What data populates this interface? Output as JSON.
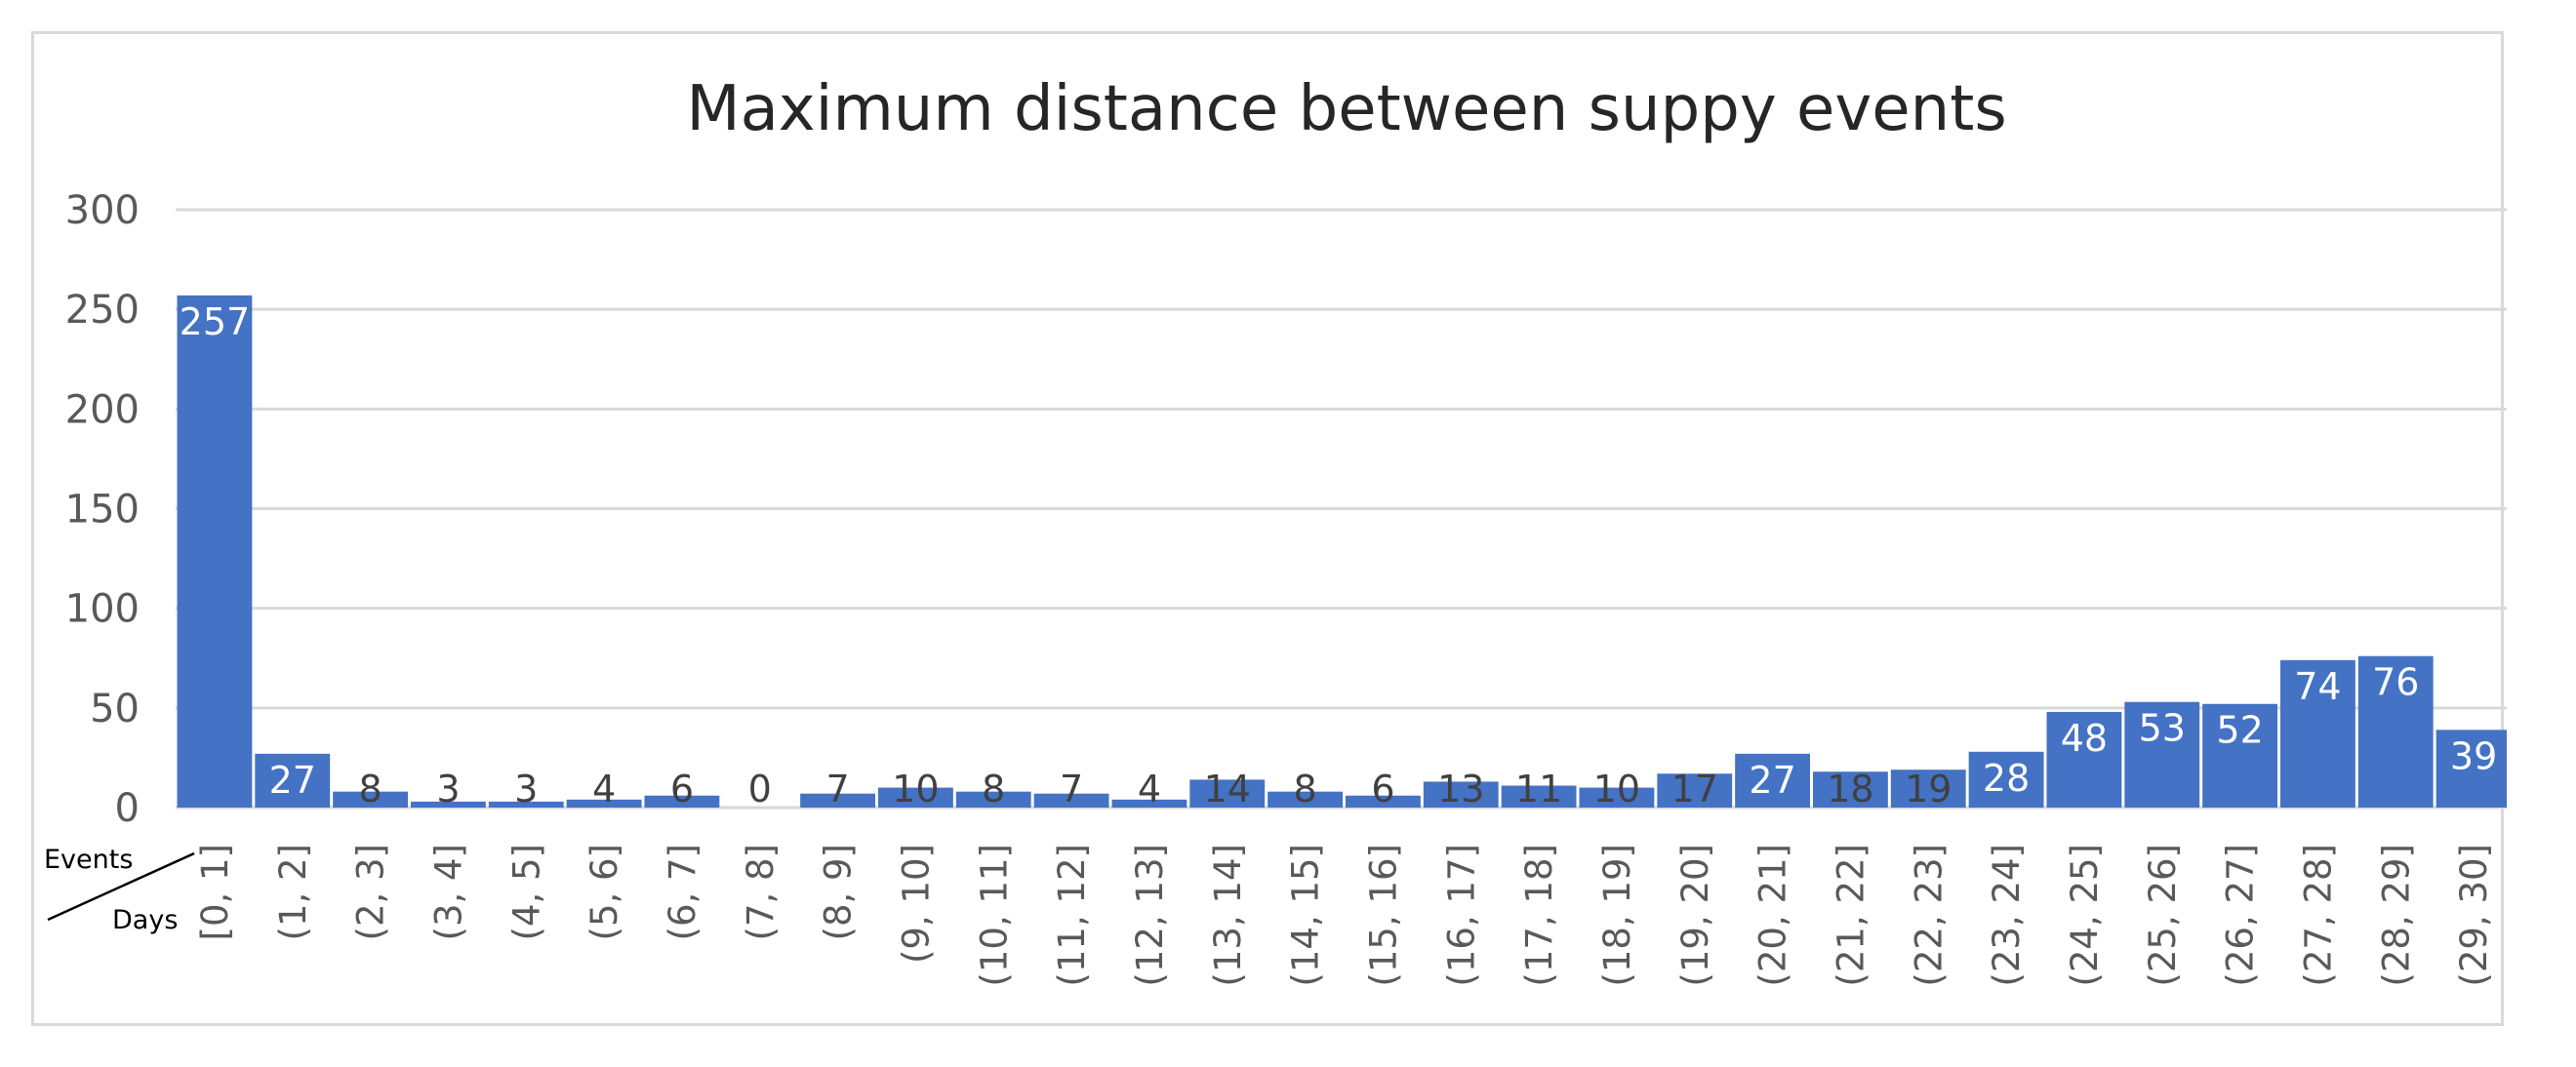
{
  "chart_data": {
    "type": "bar",
    "title": "Maximum distance between suppy events",
    "xlabel": "Days",
    "ylabel": "Events",
    "ylim": [
      0,
      300
    ],
    "yticks": [
      0,
      50,
      100,
      150,
      200,
      250,
      300
    ],
    "grid": true,
    "bar_color": "#4472c4",
    "categories": [
      "[0, 1]",
      "(1, 2]",
      "(2, 3]",
      "(3, 4]",
      "(4, 5]",
      "(5, 6]",
      "(6, 7]",
      "(7, 8]",
      "(8, 9]",
      "(9, 10]",
      "(10, 11]",
      "(11, 12]",
      "(12, 13]",
      "(13, 14]",
      "(14, 15]",
      "(15, 16]",
      "(16, 17]",
      "(17, 18]",
      "(18, 19]",
      "(19, 20]",
      "(20, 21]",
      "(21, 22]",
      "(22, 23]",
      "(23, 24]",
      "(24, 25]",
      "(25, 26]",
      "(26, 27]",
      "(27, 28]",
      "(28, 29]",
      "(29, 30]"
    ],
    "values": [
      257,
      27,
      8,
      3,
      3,
      4,
      6,
      0,
      7,
      10,
      8,
      7,
      4,
      14,
      8,
      6,
      13,
      11,
      10,
      17,
      27,
      18,
      19,
      28,
      48,
      53,
      52,
      74,
      76,
      39
    ]
  }
}
